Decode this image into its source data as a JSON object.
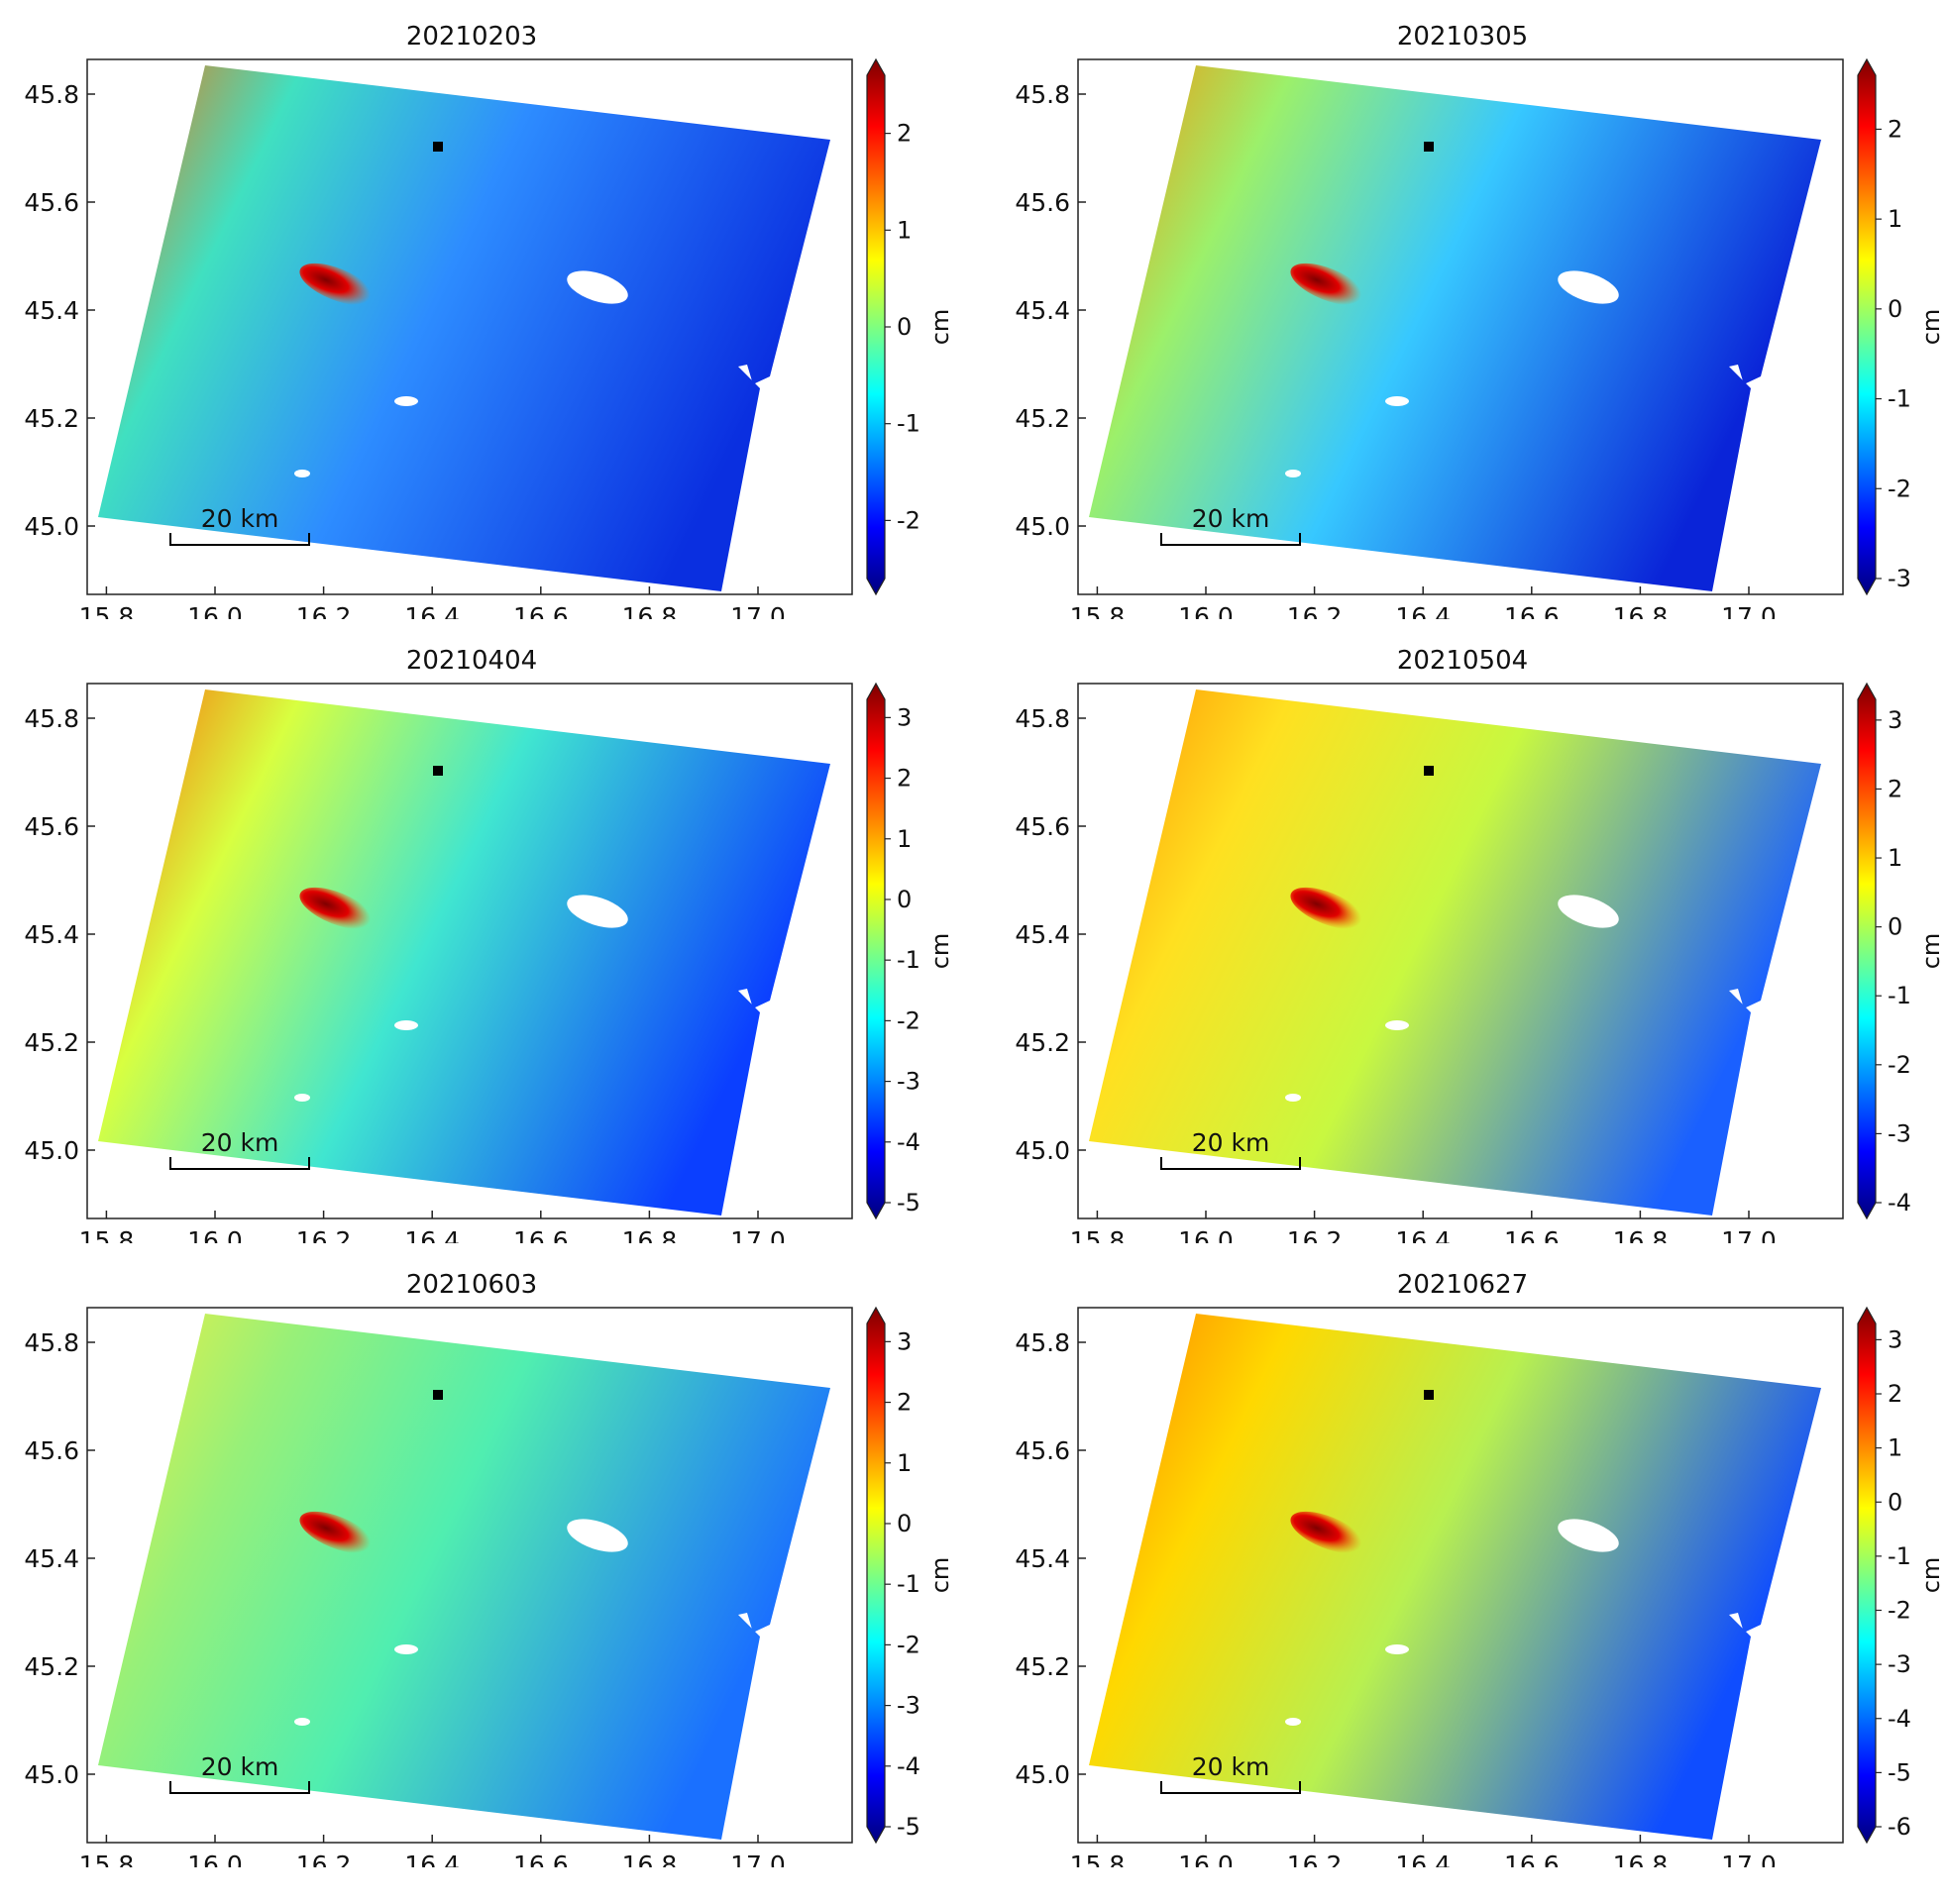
{
  "figure": {
    "x_ticks": [
      "15.8",
      "16.0",
      "16.2",
      "16.4",
      "16.6",
      "16.8",
      "17.0"
    ],
    "y_ticks": [
      "45.8",
      "45.6",
      "45.4",
      "45.2",
      "45.0"
    ],
    "colorbar_label": "cm",
    "scalebar_label": "20 km",
    "colormap": [
      "#00007f",
      "#0000ff",
      "#007fff",
      "#00ffff",
      "#7fff7f",
      "#ffff00",
      "#ff7f00",
      "#ff0000",
      "#7f0000"
    ]
  },
  "panels": [
    {
      "title": "20210203",
      "colorbar_ticks": [
        "2",
        "1",
        "0",
        "-1",
        "-2"
      ],
      "cb_range": [
        -2.6,
        2.6
      ]
    },
    {
      "title": "20210305",
      "colorbar_ticks": [
        "2",
        "1",
        "0",
        "-1",
        "-2",
        "-3"
      ],
      "cb_range": [
        -3.0,
        2.6
      ]
    },
    {
      "title": "20210404",
      "colorbar_ticks": [
        "3",
        "2",
        "1",
        "0",
        "-1",
        "-2",
        "-3",
        "-4",
        "-5"
      ],
      "cb_range": [
        -5.0,
        3.3
      ]
    },
    {
      "title": "20210504",
      "colorbar_ticks": [
        "3",
        "2",
        "1",
        "0",
        "-1",
        "-2",
        "-3",
        "-4"
      ],
      "cb_range": [
        -4.0,
        3.3
      ]
    },
    {
      "title": "20210603",
      "colorbar_ticks": [
        "3",
        "2",
        "1",
        "0",
        "-1",
        "-2",
        "-3",
        "-4",
        "-5"
      ],
      "cb_range": [
        -5.0,
        3.3
      ]
    },
    {
      "title": "20210627",
      "colorbar_ticks": [
        "3",
        "2",
        "1",
        "0",
        "-1",
        "-2",
        "-3",
        "-4",
        "-5",
        "-6"
      ],
      "cb_range": [
        -6.0,
        3.3
      ]
    }
  ]
}
